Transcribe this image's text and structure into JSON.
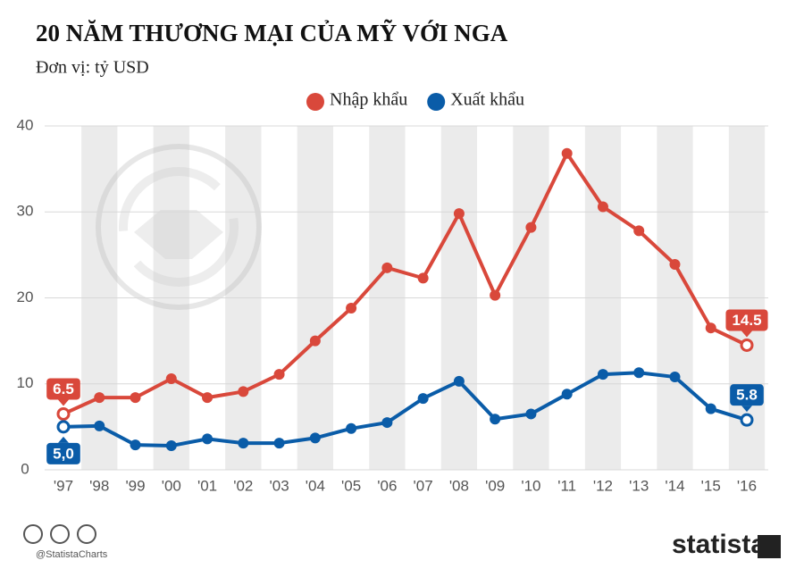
{
  "chart_data": {
    "type": "line",
    "title": "20 NĂM THƯƠNG MẠI CỦA MỸ VỚI NGA",
    "subtitle": "Đơn vị: tỷ USD",
    "categories": [
      "'97",
      "'98",
      "'99",
      "'00",
      "'01",
      "'02",
      "'03",
      "'04",
      "'05",
      "'06",
      "'07",
      "'08",
      "'09",
      "'10",
      "'11",
      "'12",
      "'13",
      "'14",
      "'15",
      "'16"
    ],
    "series": [
      {
        "name": "Nhập khẩu",
        "color": "#d9483b",
        "values": [
          6.5,
          8.4,
          8.4,
          10.6,
          8.4,
          9.1,
          11.1,
          15.0,
          18.8,
          23.5,
          22.3,
          29.8,
          20.3,
          28.2,
          36.8,
          30.6,
          27.8,
          23.9,
          16.5,
          14.5
        ],
        "value_labels": [
          "6.5",
          null,
          null,
          null,
          null,
          null,
          null,
          null,
          null,
          null,
          null,
          null,
          null,
          null,
          null,
          null,
          null,
          null,
          null,
          "14.5"
        ]
      },
      {
        "name": "Xuất khẩu",
        "color": "#0a5ca8",
        "values": [
          5.0,
          5.1,
          2.9,
          2.8,
          3.6,
          3.1,
          3.1,
          3.7,
          4.8,
          5.5,
          8.3,
          10.3,
          5.9,
          6.5,
          8.8,
          11.1,
          11.3,
          10.8,
          7.1,
          5.8
        ],
        "value_labels": [
          "5,0",
          null,
          null,
          null,
          null,
          null,
          null,
          null,
          null,
          null,
          null,
          null,
          null,
          null,
          null,
          null,
          null,
          null,
          null,
          "5.8"
        ]
      }
    ],
    "ylim": [
      0,
      40
    ],
    "yticks": [
      0,
      10,
      20,
      30,
      40
    ],
    "grid": true,
    "source": "@StatistaCharts",
    "brand": "statista"
  }
}
